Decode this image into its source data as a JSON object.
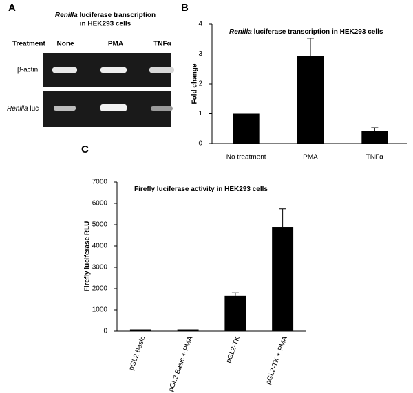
{
  "gel": {
    "panel_label": "A",
    "title_italic": "Renilla",
    "title_lines": [
      "luciferase transcription",
      "in HEK293 cells"
    ],
    "row_header": "Treatment",
    "lanes": [
      "None",
      "PMA",
      "TNFα"
    ],
    "rows": [
      {
        "label": "β-actin"
      },
      {
        "label_italic": "Renilla",
        "label": "luc"
      }
    ]
  },
  "chart_data": [
    {
      "type": "bar",
      "panel_label": "B",
      "title_italic": "Renilla",
      "title": "luciferase transcription in HEK293 cells",
      "ylabel": "Fold change",
      "categories": [
        "No treatment",
        "PMA",
        "TNFα"
      ],
      "values": [
        1,
        2.92,
        0.43
      ],
      "errors": [
        null,
        0.6,
        0.1
      ],
      "color": "#000000",
      "ylim": [
        0,
        4
      ],
      "yticks": [
        0,
        1,
        2,
        3,
        4
      ],
      "grid": false,
      "rotate_xlabels": false
    },
    {
      "type": "bar",
      "panel_label": "C",
      "title": "Firefly luciferase activity in HEK293 cells",
      "ylabel": "Firefly luciferase RLU",
      "categories": [
        "pGL2 Basic",
        "pGL2 Basic + PMA",
        "pGL2-TK",
        "pGL2-TK + PMA"
      ],
      "values": [
        80,
        80,
        1650,
        4870
      ],
      "errors": [
        null,
        null,
        150,
        880
      ],
      "color": "#000000",
      "ylim": [
        0,
        7000
      ],
      "yticks": [
        0,
        1000,
        2000,
        3000,
        4000,
        5000,
        6000,
        7000
      ],
      "grid": false,
      "rotate_xlabels": true
    }
  ]
}
